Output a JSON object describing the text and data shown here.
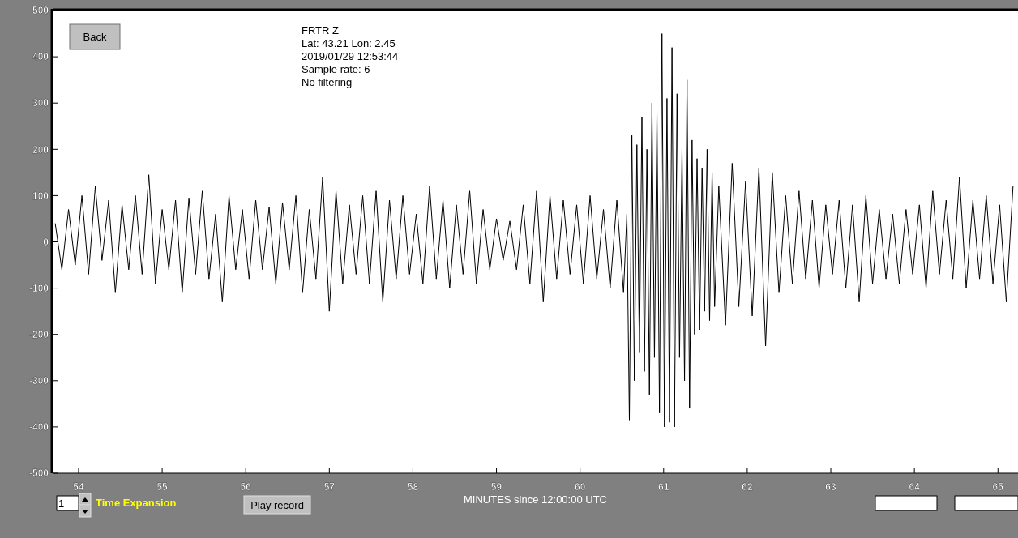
{
  "chart_data": {
    "type": "line",
    "xlabel": "MINUTES since 12:00:00 UTC",
    "annotations": [
      "FRTR  Z",
      "Lat: 43.21 Lon: 2.45",
      "2019/01/29 12:53:44",
      "Sample rate: 6",
      "No filtering",
      "Back",
      "1",
      "Time Expansion",
      "Play record"
    ],
    "x": [
      53.72,
      53.8,
      53.88,
      53.96,
      54.04,
      54.12,
      54.2,
      54.28,
      54.36,
      54.44,
      54.52,
      54.6,
      54.68,
      54.76,
      54.84,
      54.92,
      55.0,
      55.08,
      55.16,
      55.24,
      55.32,
      55.4,
      55.48,
      55.56,
      55.64,
      55.72,
      55.8,
      55.88,
      55.96,
      56.04,
      56.12,
      56.2,
      56.28,
      56.36,
      56.44,
      56.52,
      56.6,
      56.68,
      56.76,
      56.84,
      56.92,
      57.0,
      57.08,
      57.16,
      57.24,
      57.32,
      57.4,
      57.48,
      57.56,
      57.64,
      57.72,
      57.8,
      57.88,
      57.96,
      58.04,
      58.12,
      58.2,
      58.28,
      58.36,
      58.44,
      58.52,
      58.6,
      58.68,
      58.76,
      58.84,
      58.92,
      59.0,
      59.08,
      59.16,
      59.24,
      59.32,
      59.4,
      59.48,
      59.56,
      59.64,
      59.72,
      59.8,
      59.88,
      59.96,
      60.04,
      60.12,
      60.2,
      60.28,
      60.36,
      60.44,
      60.52,
      60.56,
      60.59,
      60.62,
      60.65,
      60.68,
      60.71,
      60.74,
      60.77,
      60.8,
      60.83,
      60.86,
      60.89,
      60.92,
      60.95,
      60.98,
      61.01,
      61.04,
      61.07,
      61.1,
      61.13,
      61.16,
      61.19,
      61.22,
      61.25,
      61.28,
      61.31,
      61.34,
      61.37,
      61.4,
      61.43,
      61.46,
      61.49,
      61.52,
      61.55,
      61.58,
      61.61,
      61.66,
      61.74,
      61.82,
      61.9,
      61.98,
      62.06,
      62.14,
      62.22,
      62.3,
      62.38,
      62.46,
      62.54,
      62.62,
      62.7,
      62.78,
      62.86,
      62.94,
      63.02,
      63.1,
      63.18,
      63.26,
      63.34,
      63.42,
      63.5,
      63.58,
      63.66,
      63.74,
      63.82,
      63.9,
      63.98,
      64.06,
      64.14,
      64.22,
      64.3,
      64.38,
      64.46,
      64.54,
      64.62,
      64.7,
      64.78,
      64.86,
      64.94,
      65.02,
      65.1,
      65.18
    ],
    "series": [
      {
        "color": "#000000",
        "values": [
          40,
          -60,
          70,
          -50,
          100,
          -70,
          120,
          -40,
          90,
          -110,
          80,
          -60,
          100,
          -70,
          145,
          -90,
          70,
          -60,
          90,
          -110,
          95,
          -70,
          110,
          -80,
          60,
          -130,
          100,
          -60,
          70,
          -80,
          90,
          -60,
          75,
          -90,
          85,
          -60,
          100,
          -110,
          70,
          -80,
          140,
          -150,
          110,
          -90,
          80,
          -70,
          100,
          -90,
          110,
          -130,
          90,
          -80,
          100,
          -70,
          60,
          -90,
          120,
          -80,
          90,
          -100,
          80,
          -70,
          110,
          -90,
          70,
          -60,
          50,
          -40,
          45,
          -60,
          80,
          -90,
          110,
          -130,
          100,
          -80,
          90,
          -70,
          80,
          -90,
          100,
          -80,
          70,
          -100,
          90,
          -110,
          60,
          -385,
          230,
          -300,
          210,
          -240,
          270,
          -280,
          200,
          -330,
          300,
          -250,
          280,
          -370,
          450,
          -400,
          310,
          -390,
          420,
          -400,
          320,
          -250,
          200,
          -300,
          350,
          -360,
          220,
          -200,
          180,
          -190,
          160,
          -150,
          200,
          -170,
          150,
          -140,
          120,
          -180,
          170,
          -140,
          130,
          -160,
          160,
          -225,
          150,
          -110,
          100,
          -90,
          110,
          -80,
          90,
          -100,
          80,
          -70,
          90,
          -100,
          80,
          -130,
          100,
          -90,
          70,
          -80,
          60,
          -90,
          70,
          -70,
          80,
          -100,
          110,
          -70,
          90,
          -80,
          140,
          -100,
          90,
          -80,
          100,
          -90,
          80,
          -130,
          120
        ]
      }
    ],
    "xlim": [
      53.69,
      65.24
    ],
    "ylim": [
      -500,
      500
    ],
    "xticks": [
      54,
      55,
      56,
      57,
      58,
      59,
      60,
      61,
      62,
      63,
      64,
      65
    ],
    "yticks": [
      -500,
      -400,
      -300,
      -200,
      -100,
      0,
      100,
      200,
      300,
      400,
      500
    ],
    "grid": false,
    "marker": "none",
    "line_style": "solid"
  }
}
